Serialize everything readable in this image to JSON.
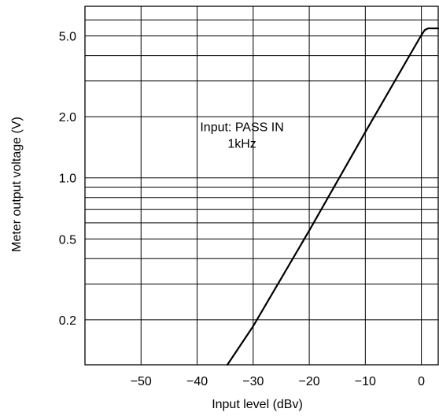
{
  "chart_data": {
    "type": "line",
    "title": "",
    "xlabel": "Input level (dBv)",
    "ylabel": "Meter output voltage (V)",
    "xlim": [
      -60,
      3
    ],
    "ylim": [
      0.12,
      7.0
    ],
    "yscale": "log",
    "grid": true,
    "x_ticks": [
      -50,
      -40,
      -30,
      -20,
      -10,
      0
    ],
    "x_tick_labels": [
      "−50",
      "−40",
      "−30",
      "−20",
      "−10",
      "0"
    ],
    "y_ticks": [
      0.2,
      0.5,
      1.0,
      2.0,
      5.0
    ],
    "y_tick_labels": [
      "0.2",
      "0.5",
      "1.0",
      "2.0",
      "5.0"
    ],
    "annotation": {
      "line1": "Input: PASS IN",
      "line2": "1kHz",
      "x": -32,
      "y": 1.7
    },
    "series": [
      {
        "x": [
          -34.6,
          -30,
          -20,
          -10,
          0,
          0.6,
          1.2,
          3
        ],
        "y": [
          0.12,
          0.186,
          0.55,
          1.68,
          5.05,
          5.35,
          5.45,
          5.45
        ]
      }
    ]
  }
}
